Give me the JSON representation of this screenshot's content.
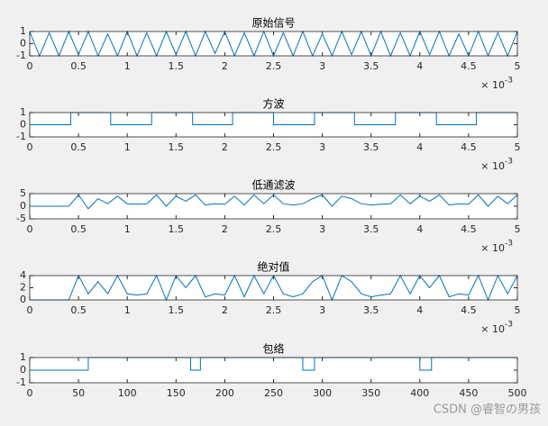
{
  "chart_data": [
    {
      "type": "line",
      "title": "原始信号",
      "color": "#0072bd",
      "x": [
        0,
        0.1,
        0.2,
        0.3,
        0.4,
        0.5,
        0.6,
        0.7,
        0.8,
        0.9,
        1,
        1.1,
        1.2,
        1.3,
        1.4,
        1.5,
        1.6,
        1.7,
        1.8,
        1.9,
        2,
        2.1,
        2.2,
        2.3,
        2.4,
        2.5,
        2.6,
        2.7,
        2.8,
        2.9,
        3,
        3.1,
        3.2,
        3.3,
        3.4,
        3.5,
        3.6,
        3.7,
        3.8,
        3.9,
        4,
        4.1,
        4.2,
        4.3,
        4.4,
        4.5,
        4.6,
        4.7,
        4.8,
        4.9,
        5
      ],
      "values": [
        1,
        -1,
        0.9,
        -1,
        1,
        -0.9,
        1,
        -1,
        0.8,
        -1,
        1,
        -1,
        0.9,
        -1,
        1,
        -0.9,
        1,
        -1,
        1,
        -0.8,
        1,
        -1,
        0.9,
        -1,
        1,
        -1,
        0.9,
        -1,
        1,
        -1,
        0.8,
        -1,
        1,
        -0.9,
        1,
        -1,
        1,
        -1,
        0.9,
        -1,
        1,
        -0.9,
        1,
        -1,
        0.8,
        -1,
        1,
        -1,
        0.9,
        -1,
        1
      ],
      "xlim": [
        0,
        5
      ],
      "ylim": [
        -1,
        1
      ],
      "xticks": [
        0,
        0.5,
        1,
        1.5,
        2,
        2.5,
        3,
        3.5,
        4,
        4.5,
        5
      ],
      "yticks": [
        -1,
        0,
        1
      ],
      "x_multiplier": "× 10",
      "x_exponent": -3
    },
    {
      "type": "line",
      "title": "方波",
      "color": "#0072bd",
      "x": [
        0,
        0.42,
        0.42,
        0.83,
        0.83,
        1.25,
        1.25,
        1.67,
        1.67,
        2.08,
        2.08,
        2.5,
        2.5,
        2.92,
        2.92,
        3.33,
        3.33,
        3.75,
        3.75,
        4.17,
        4.17,
        4.58,
        4.58,
        5
      ],
      "values": [
        0,
        0,
        1,
        1,
        0,
        0,
        1,
        1,
        0,
        0,
        1,
        1,
        0,
        0,
        1,
        1,
        0,
        0,
        1,
        1,
        0,
        0,
        1,
        1
      ],
      "xlim": [
        0,
        5
      ],
      "ylim": [
        -1,
        1
      ],
      "xticks": [
        0,
        0.5,
        1,
        1.5,
        2,
        2.5,
        3,
        3.5,
        4,
        4.5,
        5
      ],
      "yticks": [
        -1,
        0,
        1
      ],
      "x_multiplier": "× 10",
      "x_exponent": -3
    },
    {
      "type": "line",
      "title": "低通滤波",
      "color": "#0072bd",
      "x": [
        0,
        0.1,
        0.2,
        0.3,
        0.4,
        0.5,
        0.6,
        0.7,
        0.8,
        0.9,
        1,
        1.1,
        1.2,
        1.3,
        1.4,
        1.5,
        1.6,
        1.7,
        1.8,
        1.9,
        2,
        2.1,
        2.2,
        2.3,
        2.4,
        2.5,
        2.6,
        2.7,
        2.8,
        2.9,
        3,
        3.1,
        3.2,
        3.3,
        3.4,
        3.5,
        3.6,
        3.7,
        3.8,
        3.9,
        4,
        4.1,
        4.2,
        4.3,
        4.4,
        4.5,
        4.6,
        4.7,
        4.8,
        4.9,
        5
      ],
      "values": [
        0,
        0,
        0,
        0,
        0,
        4.5,
        -1,
        3,
        1,
        4,
        1,
        0.8,
        1,
        4.5,
        0,
        4,
        2,
        4.5,
        0.5,
        1,
        0.8,
        4,
        0.5,
        4.5,
        1,
        4.5,
        1,
        0.5,
        1,
        3,
        4.5,
        0,
        4,
        3,
        1,
        0.5,
        0.8,
        1,
        4.5,
        1,
        4,
        2,
        4.5,
        0.5,
        1,
        0.8,
        4.5,
        0,
        4,
        1,
        4.5
      ],
      "xlim": [
        0,
        5
      ],
      "ylim": [
        -5,
        5
      ],
      "xticks": [
        0,
        0.5,
        1,
        1.5,
        2,
        2.5,
        3,
        3.5,
        4,
        4.5,
        5
      ],
      "yticks": [
        -5,
        0,
        5
      ],
      "x_multiplier": "× 10",
      "x_exponent": -3
    },
    {
      "type": "line",
      "title": "绝对值",
      "color": "#0072bd",
      "x": [
        0,
        0.1,
        0.2,
        0.3,
        0.4,
        0.5,
        0.6,
        0.7,
        0.8,
        0.9,
        1,
        1.1,
        1.2,
        1.3,
        1.4,
        1.5,
        1.6,
        1.7,
        1.8,
        1.9,
        2,
        2.1,
        2.2,
        2.3,
        2.4,
        2.5,
        2.6,
        2.7,
        2.8,
        2.9,
        3,
        3.1,
        3.2,
        3.3,
        3.4,
        3.5,
        3.6,
        3.7,
        3.8,
        3.9,
        4,
        4.1,
        4.2,
        4.3,
        4.4,
        4.5,
        4.6,
        4.7,
        4.8,
        4.9,
        5
      ],
      "values": [
        0,
        0,
        0,
        0,
        0,
        4,
        1,
        3,
        1,
        4,
        1,
        0.8,
        1,
        4,
        0,
        4,
        2,
        4,
        0.5,
        1,
        0.8,
        4,
        0.5,
        4,
        1,
        4,
        1,
        0.5,
        1,
        3,
        4,
        0,
        4,
        3,
        1,
        0.5,
        0.8,
        1,
        4,
        1,
        4,
        2,
        4,
        0.5,
        1,
        0.8,
        4,
        0,
        4,
        1,
        4
      ],
      "xlim": [
        0,
        5
      ],
      "ylim": [
        0,
        4
      ],
      "xticks": [
        0,
        0.5,
        1,
        1.5,
        2,
        2.5,
        3,
        3.5,
        4,
        4.5,
        5
      ],
      "yticks": [
        0,
        2,
        4
      ],
      "x_multiplier": "× 10",
      "x_exponent": -3
    },
    {
      "type": "line",
      "title": "包络",
      "color": "#0072bd",
      "x": [
        0,
        60,
        60,
        165,
        165,
        175,
        175,
        280,
        280,
        292,
        292,
        400,
        400,
        412,
        412,
        500
      ],
      "values": [
        0,
        0,
        1,
        1,
        0,
        0,
        1,
        1,
        0,
        0,
        1,
        1,
        0,
        0,
        1,
        1
      ],
      "xlim": [
        0,
        500
      ],
      "ylim": [
        -1,
        1
      ],
      "xticks": [
        0,
        50,
        100,
        150,
        200,
        250,
        300,
        350,
        400,
        450,
        500
      ],
      "yticks": [
        -1,
        0,
        1
      ]
    }
  ],
  "watermark": "CSDN @睿智の男孩"
}
